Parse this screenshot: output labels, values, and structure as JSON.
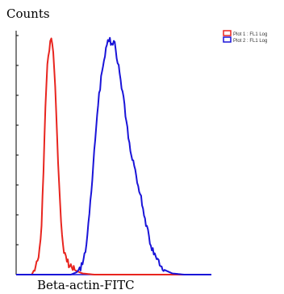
{
  "chart_data": {
    "type": "line",
    "ylabel": "Counts",
    "xlabel": "Beta-actin-FITC",
    "xscale": "log",
    "xlim": [
      0,
      100
    ],
    "ylim": [
      0,
      100
    ],
    "grid": false,
    "legend_position": "top-right",
    "series": [
      {
        "name": "Plot 1 : FL1 Log",
        "color": "#e8251f",
        "x": [
          0,
          8,
          11,
          13,
          14,
          15,
          16,
          17,
          18,
          19,
          20,
          21,
          22,
          23,
          24,
          26,
          28,
          31,
          34,
          40,
          60,
          100
        ],
        "y": [
          0,
          0,
          5,
          20,
          45,
          70,
          88,
          96,
          100,
          95,
          80,
          58,
          38,
          22,
          12,
          6,
          3,
          1.5,
          0.5,
          0,
          0,
          0
        ]
      },
      {
        "name": "Plot 2 : FL1 Log",
        "color": "#1a14d8",
        "x": [
          0,
          28,
          31,
          34,
          36,
          38,
          40,
          42,
          44,
          46,
          48,
          49,
          50,
          51,
          52,
          54,
          56,
          58,
          60,
          62,
          64,
          66,
          68,
          70,
          73,
          76,
          80,
          86,
          100
        ],
        "y": [
          0,
          0,
          1,
          4,
          12,
          30,
          52,
          72,
          87,
          96,
          100,
          97,
          99,
          96,
          90,
          80,
          68,
          56,
          47,
          40,
          32,
          24,
          16,
          10,
          5,
          2,
          0.5,
          0,
          0
        ]
      }
    ]
  }
}
